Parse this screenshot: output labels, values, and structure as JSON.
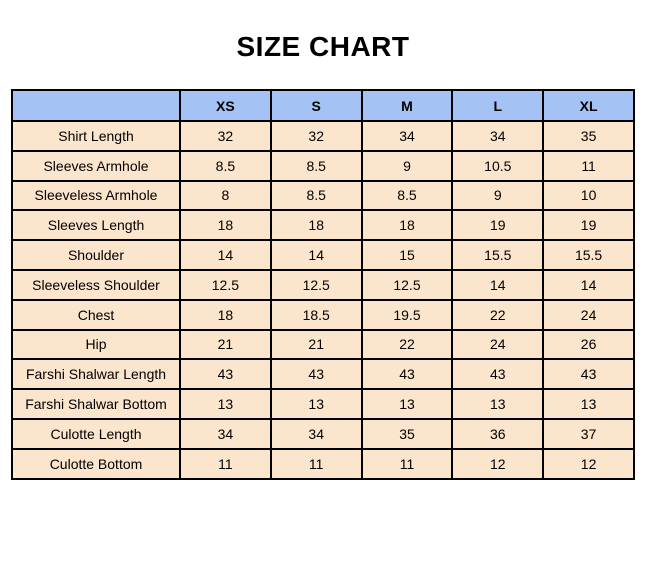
{
  "title": "SIZE CHART",
  "colors": {
    "header_bg": "#a4c2f4",
    "row_bg": "#fce5cd",
    "border": "#000000",
    "text": "#000000",
    "page_bg": "#ffffff"
  },
  "chart_data": {
    "type": "table",
    "title": "SIZE CHART",
    "corner_label": "",
    "columns": [
      "XS",
      "S",
      "M",
      "L",
      "XL"
    ],
    "rows": [
      {
        "label": "Shirt Length",
        "values": [
          "32",
          "32",
          "34",
          "34",
          "35"
        ]
      },
      {
        "label": "Sleeves Armhole",
        "values": [
          "8.5",
          "8.5",
          "9",
          "10.5",
          "11"
        ]
      },
      {
        "label": "Sleeveless Armhole",
        "values": [
          "8",
          "8.5",
          "8.5",
          "9",
          "10"
        ]
      },
      {
        "label": "Sleeves Length",
        "values": [
          "18",
          "18",
          "18",
          "19",
          "19"
        ]
      },
      {
        "label": "Shoulder",
        "values": [
          "14",
          "14",
          "15",
          "15.5",
          "15.5"
        ]
      },
      {
        "label": "Sleeveless Shoulder",
        "values": [
          "12.5",
          "12.5",
          "12.5",
          "14",
          "14"
        ]
      },
      {
        "label": "Chest",
        "values": [
          "18",
          "18.5",
          "19.5",
          "22",
          "24"
        ]
      },
      {
        "label": "Hip",
        "values": [
          "21",
          "21",
          "22",
          "24",
          "26"
        ]
      },
      {
        "label": "Farshi Shalwar Length",
        "values": [
          "43",
          "43",
          "43",
          "43",
          "43"
        ]
      },
      {
        "label": "Farshi Shalwar Bottom",
        "values": [
          "13",
          "13",
          "13",
          "13",
          "13"
        ]
      },
      {
        "label": "Culotte Length",
        "values": [
          "34",
          "34",
          "35",
          "36",
          "37"
        ]
      },
      {
        "label": "Culotte Bottom",
        "values": [
          "11",
          "11",
          "11",
          "12",
          "12"
        ]
      }
    ]
  }
}
